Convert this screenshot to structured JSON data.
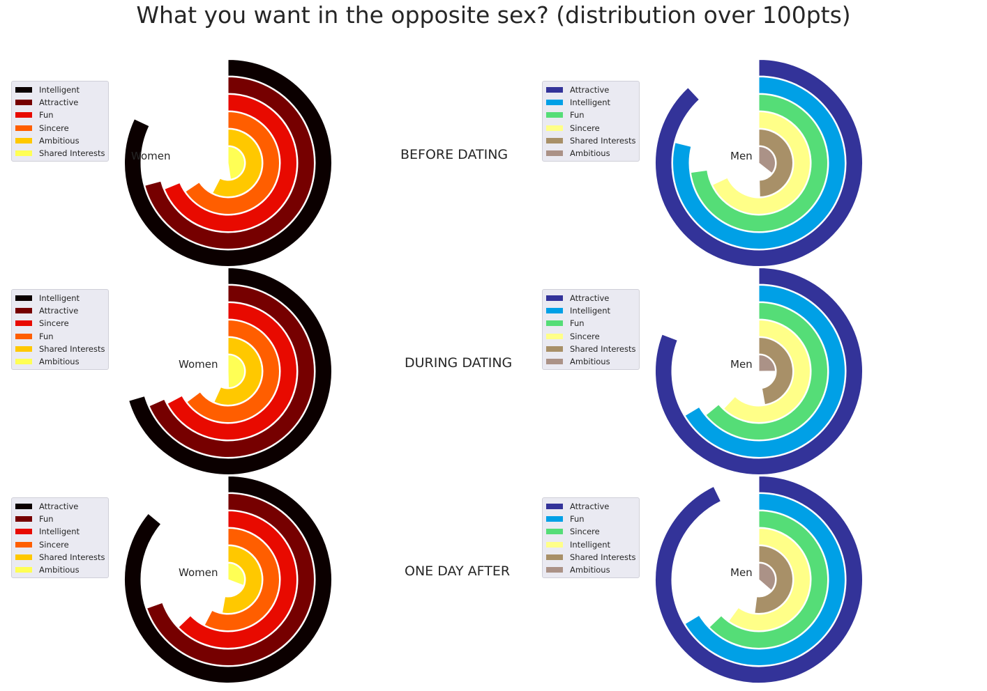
{
  "title": "What you want in the opposite sex? (distribution over 100pts)",
  "colors": {
    "women": [
      "#0b0000",
      "#760000",
      "#e80a00",
      "#ff5e00",
      "#ffc800",
      "#ffff55"
    ],
    "men": [
      "#333399",
      "#00a0e6",
      "#55dd77",
      "#ffff88",
      "#a89068",
      "#ab9287"
    ]
  },
  "chart_data": [
    {
      "type": "radial_bar",
      "row_label": "BEFORE DATING",
      "center_label": "Women",
      "scale_max": 25,
      "categories": [
        "Intelligent",
        "Attractive",
        "Fun",
        "Sincere",
        "Ambitious",
        "Shared Interests"
      ],
      "values": [
        20.5,
        17.7,
        17.2,
        16.4,
        14.4,
        11.9
      ]
    },
    {
      "type": "radial_bar",
      "row_label": "BEFORE DATING",
      "center_label": "Men",
      "scale_max": 25,
      "categories": [
        "Attractive",
        "Intelligent",
        "Fun",
        "Sincere",
        "Shared Interests",
        "Ambitious"
      ],
      "values": [
        22.0,
        19.7,
        18.2,
        17.0,
        12.4,
        8.9
      ]
    },
    {
      "type": "radial_bar",
      "row_label": "DURING DATING",
      "center_label": "Women",
      "scale_max": 25,
      "categories": [
        "Intelligent",
        "Attractive",
        "Sincere",
        "Fun",
        "Shared Interests",
        "Ambitious"
      ],
      "values": [
        17.6,
        17.1,
        16.8,
        16.2,
        14.2,
        12.4
      ]
    },
    {
      "type": "radial_bar",
      "row_label": "DURING DATING",
      "center_label": "Men",
      "scale_max": 25,
      "categories": [
        "Attractive",
        "Intelligent",
        "Fun",
        "Sincere",
        "Shared Interests",
        "Ambitious"
      ],
      "values": [
        20.2,
        16.6,
        16.0,
        15.5,
        11.8,
        6.2
      ]
    },
    {
      "type": "radial_bar",
      "row_label": "ONE DAY AFTER",
      "center_label": "Women",
      "scale_max": 25,
      "categories": [
        "Attractive",
        "Fun",
        "Intelligent",
        "Sincere",
        "Shared Interests",
        "Ambitious"
      ],
      "values": [
        21.5,
        17.4,
        15.7,
        14.4,
        13.2,
        7.7
      ]
    },
    {
      "type": "radial_bar",
      "row_label": "ONE DAY AFTER",
      "center_label": "Men",
      "scale_max": 25,
      "categories": [
        "Attractive",
        "Fun",
        "Sincere",
        "Intelligent",
        "Shared Interests",
        "Ambitious"
      ],
      "values": [
        23.2,
        16.6,
        15.7,
        15.0,
        13.0,
        9.1
      ]
    }
  ]
}
